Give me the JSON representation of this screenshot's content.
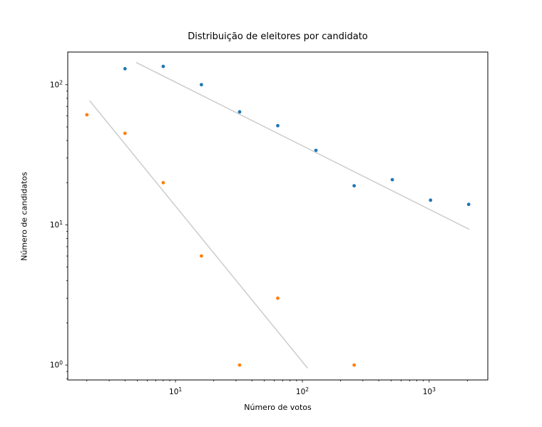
{
  "chart_data": {
    "type": "scatter",
    "title": "Distribuição de eleitores por candidato",
    "xlabel": "Número de votos",
    "ylabel": "Número de candidatos",
    "xscale": "log",
    "yscale": "log",
    "xlim": [
      1.414,
      2897
    ],
    "ylim": [
      0.783,
      171
    ],
    "grid": false,
    "legend": null,
    "x_major_ticks": [
      10,
      100,
      1000
    ],
    "y_major_ticks": [
      1,
      10,
      100
    ],
    "series": [
      {
        "color": "#1f77b4",
        "marker": "circle",
        "points": [
          [
            4,
            130
          ],
          [
            8,
            135
          ],
          [
            16,
            100
          ],
          [
            32,
            64
          ],
          [
            64,
            51
          ],
          [
            128,
            34
          ],
          [
            256,
            19
          ],
          [
            512,
            21
          ],
          [
            1024,
            15
          ],
          [
            2048,
            14
          ]
        ]
      },
      {
        "color": "#ff7f0e",
        "marker": "circle",
        "points": [
          [
            2,
            61
          ],
          [
            4,
            45
          ],
          [
            8,
            20
          ],
          [
            16,
            6
          ],
          [
            32,
            1
          ],
          [
            64,
            3
          ],
          [
            256,
            1
          ]
        ]
      }
    ],
    "trend_lines": [
      {
        "color": "#cccccc",
        "from": [
          4.9,
          144
        ],
        "to": [
          2070,
          9.3
        ]
      },
      {
        "color": "#cccccc",
        "from": [
          2.1,
          77
        ],
        "to": [
          110,
          0.95
        ]
      }
    ]
  },
  "layout_colors": {
    "spine": "#000000",
    "background": "#ffffff"
  }
}
